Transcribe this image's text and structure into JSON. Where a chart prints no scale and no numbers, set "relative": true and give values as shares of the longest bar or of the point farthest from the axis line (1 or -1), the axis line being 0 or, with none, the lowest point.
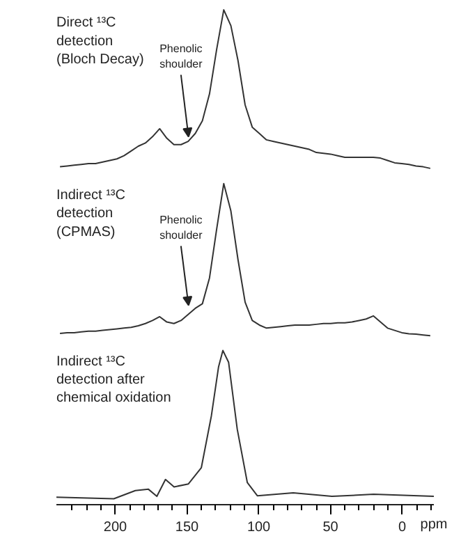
{
  "chart_data": [
    {
      "type": "line",
      "relative": true,
      "title": "Direct ¹³C\ndetection\n(Bloch Decay)",
      "color": "#333333",
      "tick_labels": false,
      "line_style": "solid",
      "marker": "none",
      "categories": [
        null,
        null,
        null,
        null,
        null,
        null,
        null,
        null,
        null,
        null,
        null,
        null,
        null,
        null,
        null,
        null,
        null,
        null,
        null,
        null,
        null,
        null,
        null,
        null,
        null,
        null,
        null,
        null,
        null,
        null,
        null,
        null,
        null,
        null,
        null,
        null,
        null,
        null,
        null,
        null,
        null,
        null,
        null,
        null,
        null,
        null,
        null,
        null,
        null,
        null,
        null,
        null,
        null
      ],
      "values": [
        0.01,
        0.015,
        0.02,
        0.025,
        0.03,
        0.03,
        0.04,
        0.05,
        0.06,
        0.08,
        0.11,
        0.14,
        0.16,
        0.2,
        0.25,
        0.19,
        0.15,
        0.15,
        0.17,
        0.22,
        0.3,
        0.47,
        0.75,
        1.0,
        0.9,
        0.68,
        0.4,
        0.26,
        0.22,
        0.18,
        0.17,
        0.16,
        0.15,
        0.14,
        0.13,
        0.12,
        0.1,
        0.095,
        0.09,
        0.08,
        0.07,
        0.07,
        0.07,
        0.07,
        0.07,
        0.065,
        0.05,
        0.035,
        0.03,
        0.025,
        0.015,
        0.01,
        0
      ],
      "annotations": [
        "Phenolic\nshoulder"
      ]
    },
    {
      "type": "line",
      "relative": true,
      "title": "Indirect ¹³C\ndetection\n(CPMAS)",
      "color": "#333333",
      "tick_labels": false,
      "line_style": "solid",
      "marker": "none",
      "categories": [
        null,
        null,
        null,
        null,
        null,
        null,
        null,
        null,
        null,
        null,
        null,
        null,
        null,
        null,
        null,
        null,
        null,
        null,
        null,
        null,
        null,
        null,
        null,
        null,
        null,
        null,
        null,
        null,
        null,
        null,
        null,
        null,
        null,
        null,
        null,
        null,
        null,
        null,
        null,
        null,
        null,
        null,
        null,
        null,
        null,
        null,
        null,
        null,
        null,
        null,
        null,
        null,
        null
      ],
      "values": [
        0.015,
        0.02,
        0.02,
        0.025,
        0.03,
        0.03,
        0.035,
        0.04,
        0.045,
        0.05,
        0.055,
        0.065,
        0.08,
        0.1,
        0.125,
        0.09,
        0.08,
        0.1,
        0.14,
        0.18,
        0.21,
        0.38,
        0.7,
        1.0,
        0.82,
        0.5,
        0.22,
        0.1,
        0.07,
        0.05,
        0.055,
        0.06,
        0.065,
        0.07,
        0.07,
        0.07,
        0.075,
        0.08,
        0.08,
        0.085,
        0.085,
        0.09,
        0.1,
        0.11,
        0.13,
        0.09,
        0.05,
        0.035,
        0.02,
        0.013,
        0.01,
        0.005,
        0
      ],
      "annotations": [
        "Phenolic\nshoulder"
      ]
    },
    {
      "type": "line",
      "relative": true,
      "title": "Indirect ¹³C\ndetection after\nchemical oxidation",
      "color": "#333333",
      "tick_labels": "x",
      "xlim": [
        241,
        -22
      ],
      "xlabel": "ppm",
      "line_style": "solid",
      "marker": "none",
      "x": [
        241,
        201,
        186,
        177,
        171,
        165,
        159,
        149,
        140,
        133,
        128,
        125,
        121,
        115,
        108,
        101,
        76,
        49,
        20,
        -22
      ],
      "values": [
        0.01,
        0,
        0.055,
        0.065,
        0.016,
        0.13,
        0.08,
        0.1,
        0.21,
        0.56,
        0.89,
        1.0,
        0.92,
        0.47,
        0.11,
        0.02,
        0.04,
        0.016,
        0.03,
        0.016
      ],
      "xticks": [
        {
          "value": 230,
          "label": null
        },
        {
          "value": 220,
          "label": null
        },
        {
          "value": 210,
          "label": null
        },
        200,
        {
          "value": 190,
          "label": null
        },
        {
          "value": 180,
          "label": null
        },
        {
          "value": 170,
          "label": null
        },
        {
          "value": 160,
          "label": null
        },
        150,
        {
          "value": 140,
          "label": null
        },
        {
          "value": 130,
          "label": null
        },
        {
          "value": 120,
          "label": null
        },
        {
          "value": 110,
          "label": null
        },
        100,
        {
          "value": 90,
          "label": null
        },
        {
          "value": 80,
          "label": null
        },
        {
          "value": 70,
          "label": null
        },
        {
          "value": 60,
          "label": null
        },
        50,
        {
          "value": 40,
          "label": null
        },
        {
          "value": 30,
          "label": null
        },
        {
          "value": 20,
          "label": null
        },
        {
          "value": 10,
          "label": null
        },
        0,
        {
          "value": -10,
          "label": null
        },
        {
          "value": -20,
          "label": null
        }
      ]
    }
  ]
}
